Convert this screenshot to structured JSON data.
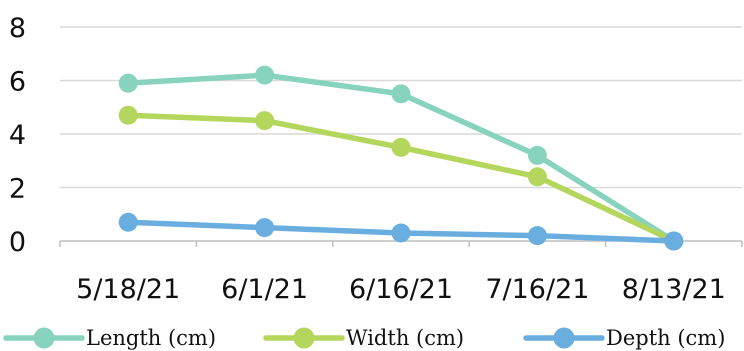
{
  "chart_data": {
    "type": "line",
    "categories": [
      "5/18/21",
      "6/1/21",
      "6/16/21",
      "7/16/21",
      "8/13/21"
    ],
    "series": [
      {
        "name": "Length (cm)",
        "values": [
          5.9,
          6.2,
          5.5,
          3.2,
          0
        ],
        "color": "#88d3bd"
      },
      {
        "name": "Width (cm)",
        "values": [
          4.7,
          4.5,
          3.5,
          2.4,
          0
        ],
        "color": "#b5d65c"
      },
      {
        "name": "Depth (cm)",
        "values": [
          0.7,
          0.5,
          0.3,
          0.2,
          0
        ],
        "color": "#6aaee0"
      }
    ],
    "ylim": [
      0,
      8
    ],
    "yticks": [
      "0",
      "2",
      "4",
      "6",
      "8"
    ],
    "grid": true,
    "legend_position": "bottom"
  }
}
